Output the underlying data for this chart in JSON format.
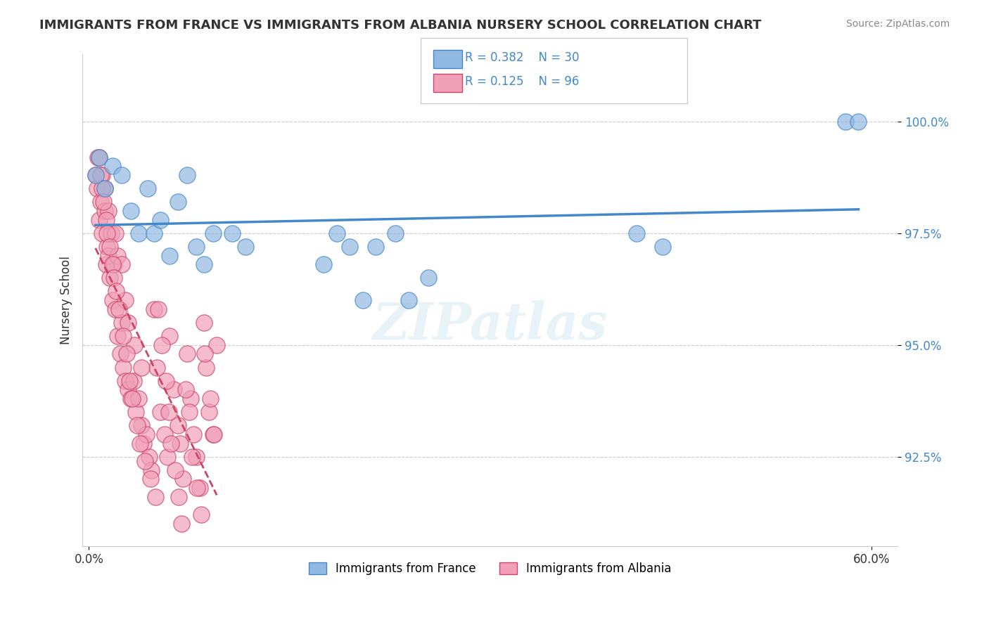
{
  "title": "IMMIGRANTS FROM FRANCE VS IMMIGRANTS FROM ALBANIA NURSERY SCHOOL CORRELATION CHART",
  "source": "Source: ZipAtlas.com",
  "xlabel_ticks": [
    "0.0%",
    "60.0%"
  ],
  "ylabel_ticks": [
    "92.5%",
    "95.0%",
    "97.5%",
    "100.0%"
  ],
  "xlim": [
    -0.005,
    0.62
  ],
  "ylim": [
    0.905,
    1.015
  ],
  "ylabel": "Nursery School",
  "legend_france": "Immigrants from France",
  "legend_albania": "Immigrants from Albania",
  "r_france": "0.382",
  "n_france": "30",
  "r_albania": "0.125",
  "n_albania": "96",
  "color_france": "#90b8e0",
  "color_albania": "#f0a0b8",
  "trendline_france": "#4488cc",
  "trendline_albania": "#cc4466",
  "watermark": "ZIPatlas",
  "france_x": [
    0.005,
    0.008,
    0.012,
    0.018,
    0.025,
    0.032,
    0.038,
    0.045,
    0.05,
    0.055,
    0.062,
    0.068,
    0.075,
    0.082,
    0.088,
    0.095,
    0.11,
    0.12,
    0.18,
    0.19,
    0.2,
    0.21,
    0.22,
    0.235,
    0.245,
    0.26,
    0.42,
    0.44,
    0.58,
    0.59
  ],
  "france_y": [
    0.988,
    0.992,
    0.985,
    0.99,
    0.988,
    0.98,
    0.975,
    0.985,
    0.975,
    0.978,
    0.97,
    0.982,
    0.988,
    0.972,
    0.968,
    0.975,
    0.975,
    0.972,
    0.968,
    0.975,
    0.972,
    0.96,
    0.972,
    0.975,
    0.96,
    0.965,
    0.975,
    0.972,
    1.0,
    1.0
  ],
  "albania_x": [
    0.005,
    0.006,
    0.007,
    0.008,
    0.009,
    0.01,
    0.012,
    0.013,
    0.014,
    0.015,
    0.016,
    0.017,
    0.018,
    0.019,
    0.02,
    0.022,
    0.024,
    0.025,
    0.026,
    0.028,
    0.03,
    0.032,
    0.034,
    0.036,
    0.038,
    0.04,
    0.042,
    0.044,
    0.046,
    0.048,
    0.05,
    0.052,
    0.055,
    0.058,
    0.06,
    0.062,
    0.065,
    0.068,
    0.07,
    0.072,
    0.075,
    0.078,
    0.08,
    0.082,
    0.085,
    0.088,
    0.09,
    0.092,
    0.095,
    0.098,
    0.01,
    0.012,
    0.015,
    0.02,
    0.022,
    0.025,
    0.028,
    0.03,
    0.035,
    0.04,
    0.008,
    0.009,
    0.01,
    0.011,
    0.013,
    0.014,
    0.016,
    0.018,
    0.019,
    0.021,
    0.023,
    0.026,
    0.029,
    0.031,
    0.033,
    0.037,
    0.039,
    0.043,
    0.047,
    0.051,
    0.053,
    0.056,
    0.059,
    0.061,
    0.063,
    0.066,
    0.069,
    0.071,
    0.074,
    0.077,
    0.079,
    0.083,
    0.086,
    0.089,
    0.093,
    0.096
  ],
  "albania_y": [
    0.988,
    0.985,
    0.992,
    0.978,
    0.982,
    0.975,
    0.98,
    0.968,
    0.972,
    0.97,
    0.965,
    0.975,
    0.96,
    0.968,
    0.958,
    0.952,
    0.948,
    0.955,
    0.945,
    0.942,
    0.94,
    0.938,
    0.942,
    0.935,
    0.938,
    0.932,
    0.928,
    0.93,
    0.925,
    0.922,
    0.958,
    0.945,
    0.935,
    0.93,
    0.925,
    0.952,
    0.94,
    0.932,
    0.928,
    0.92,
    0.948,
    0.938,
    0.93,
    0.925,
    0.918,
    0.955,
    0.945,
    0.935,
    0.93,
    0.95,
    0.988,
    0.985,
    0.98,
    0.975,
    0.97,
    0.968,
    0.96,
    0.955,
    0.95,
    0.945,
    0.992,
    0.988,
    0.985,
    0.982,
    0.978,
    0.975,
    0.972,
    0.968,
    0.965,
    0.962,
    0.958,
    0.952,
    0.948,
    0.942,
    0.938,
    0.932,
    0.928,
    0.924,
    0.92,
    0.916,
    0.958,
    0.95,
    0.942,
    0.935,
    0.928,
    0.922,
    0.916,
    0.91,
    0.94,
    0.935,
    0.925,
    0.918,
    0.912,
    0.948,
    0.938,
    0.93
  ]
}
